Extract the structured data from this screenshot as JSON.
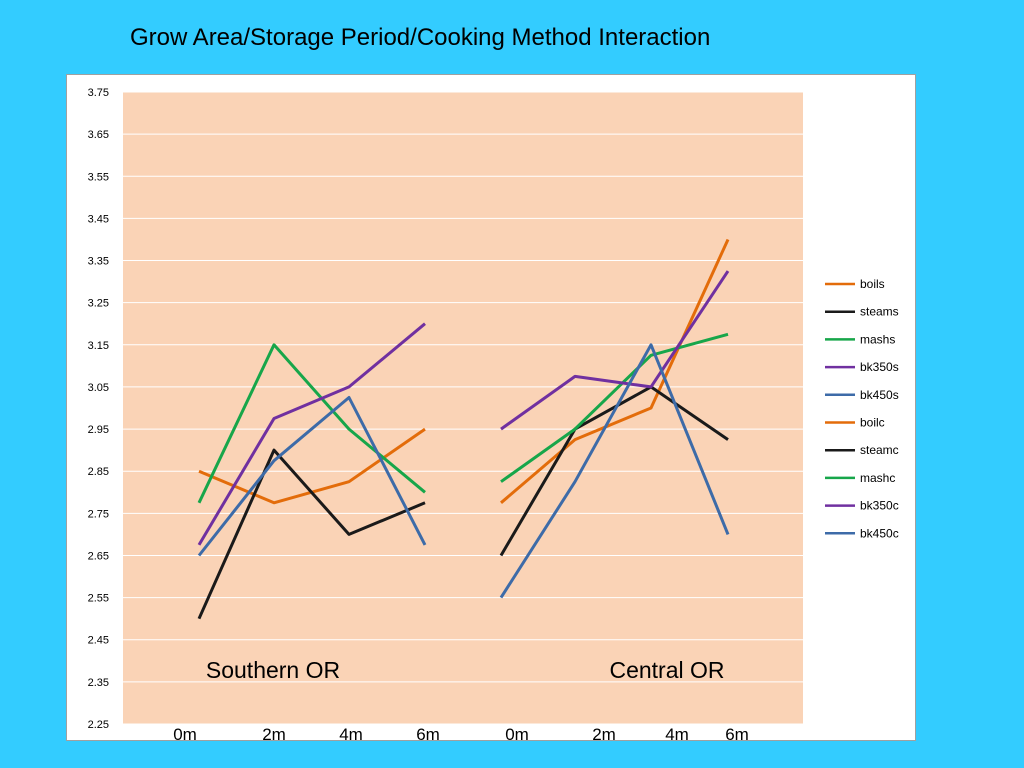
{
  "chart_data": {
    "type": "line",
    "title": "Grow Area/Storage Period/Cooking Method Interaction",
    "ylim": [
      2.25,
      3.75
    ],
    "y_ticks": [
      "3.75",
      "3.65",
      "3.55",
      "3.45",
      "3.35",
      "3.25",
      "3.15",
      "3.05",
      "2.95",
      "2.85",
      "2.75",
      "2.65",
      "2.55",
      "2.45",
      "2.35",
      "2.25"
    ],
    "groups": [
      {
        "label": "Southern OR",
        "x": [
          "0m",
          "2m",
          "4m",
          "6m"
        ]
      },
      {
        "label": "Central OR",
        "x": [
          "0m",
          "2m",
          "4m",
          "6m"
        ]
      }
    ],
    "grid": true,
    "plot_background": "#FAD3B6",
    "legend_position": "right",
    "series": [
      {
        "name": "boils",
        "color": "#E36C0A",
        "group": 0,
        "values": [
          2.85,
          2.775,
          2.825,
          2.95
        ]
      },
      {
        "name": "steams",
        "color": "#1A1A1A",
        "group": 0,
        "values": [
          2.5,
          2.9,
          2.7,
          2.775
        ]
      },
      {
        "name": "mashs",
        "color": "#17A64A",
        "group": 0,
        "values": [
          2.775,
          3.15,
          2.95,
          2.8
        ]
      },
      {
        "name": "bk350s",
        "color": "#7030A0",
        "group": 0,
        "values": [
          2.675,
          2.975,
          3.05,
          3.2
        ]
      },
      {
        "name": "bk450s",
        "color": "#3D6BA8",
        "group": 0,
        "values": [
          2.65,
          2.875,
          3.025,
          2.675
        ]
      },
      {
        "name": "boilc",
        "color": "#E36C0A",
        "group": 1,
        "values": [
          2.775,
          2.925,
          3.0,
          3.4
        ]
      },
      {
        "name": "steamc",
        "color": "#1A1A1A",
        "group": 1,
        "values": [
          2.65,
          2.95,
          3.05,
          2.925
        ]
      },
      {
        "name": "mashc",
        "color": "#17A64A",
        "group": 1,
        "values": [
          2.825,
          2.95,
          3.125,
          3.175
        ]
      },
      {
        "name": "bk350c",
        "color": "#7030A0",
        "group": 1,
        "values": [
          2.95,
          3.075,
          3.05,
          3.325
        ]
      },
      {
        "name": "bk450c",
        "color": "#3D6BA8",
        "group": 1,
        "values": [
          2.55,
          2.825,
          3.15,
          2.7
        ]
      }
    ]
  }
}
